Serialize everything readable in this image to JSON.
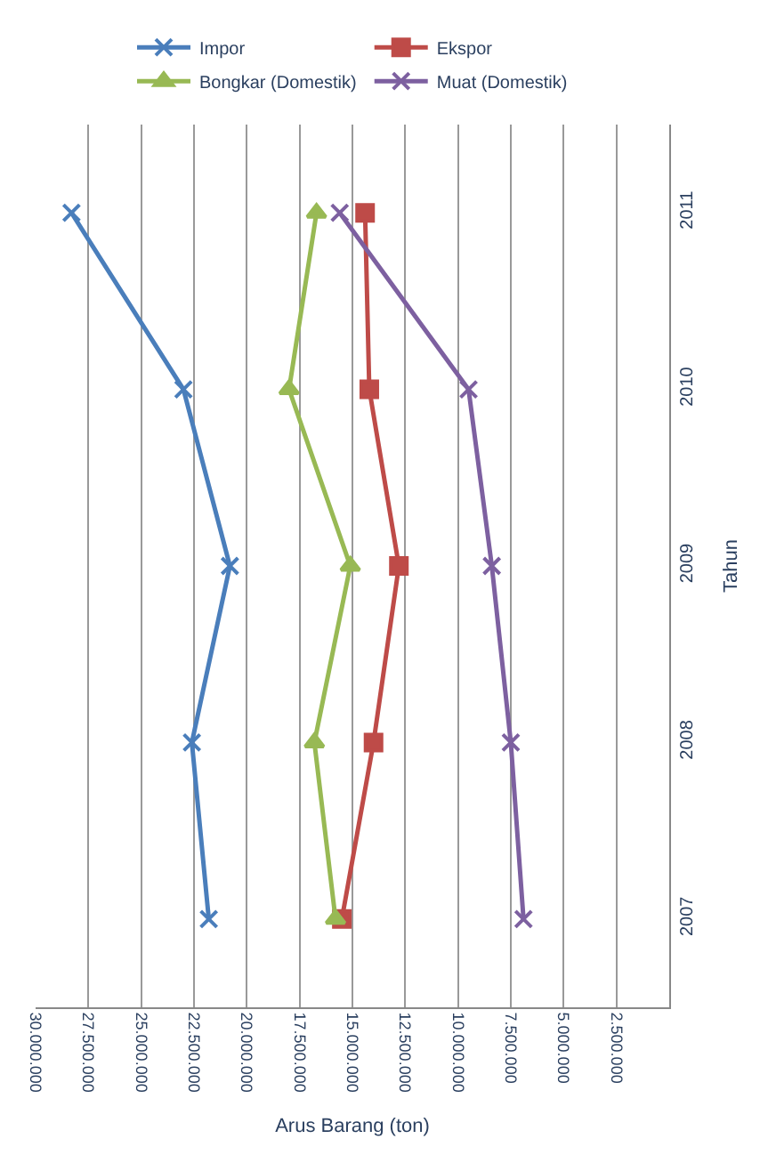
{
  "chart_data": {
    "type": "line",
    "orientation": "horizontal",
    "ylabel": "Tahun",
    "xlabel": "Arus Barang (ton)",
    "categories": [
      "2011",
      "2010",
      "2009",
      "2008",
      "2007"
    ],
    "series": [
      {
        "name": "Impor",
        "color": "#4a7ebb",
        "marker": "cross",
        "values": [
          28300000,
          23000000,
          20800000,
          22600000,
          21800000
        ]
      },
      {
        "name": "Ekspor",
        "color": "#be4b48",
        "marker": "square",
        "values": [
          14400000,
          14200000,
          12800000,
          14000000,
          15500000
        ]
      },
      {
        "name": "Bongkar (Domestik)",
        "color": "#98b954",
        "marker": "triangle",
        "values": [
          16700000,
          18000000,
          15100000,
          16800000,
          15800000
        ]
      },
      {
        "name": "Muat (Domestik)",
        "color": "#7d60a0",
        "marker": "cross",
        "values": [
          15600000,
          9500000,
          8400000,
          7500000,
          6900000
        ]
      }
    ],
    "xlim": [
      30000000,
      0
    ],
    "xticks": [
      {
        "value": 30000000,
        "label": "30.000.000"
      },
      {
        "value": 27500000,
        "label": "27.500.000"
      },
      {
        "value": 25000000,
        "label": "25.000.000"
      },
      {
        "value": 22500000,
        "label": "22.500.000"
      },
      {
        "value": 20000000,
        "label": "20.000.000"
      },
      {
        "value": 17500000,
        "label": "17.500.000"
      },
      {
        "value": 15000000,
        "label": "15.000.000"
      },
      {
        "value": 12500000,
        "label": "12.500.000"
      },
      {
        "value": 10000000,
        "label": "10.000.000"
      },
      {
        "value": 7500000,
        "label": "7.500.000"
      },
      {
        "value": 5000000,
        "label": "5.000.000"
      },
      {
        "value": 2500000,
        "label": "2.500.000"
      }
    ],
    "grid": "x",
    "legend": "top",
    "line_style": "solid"
  }
}
